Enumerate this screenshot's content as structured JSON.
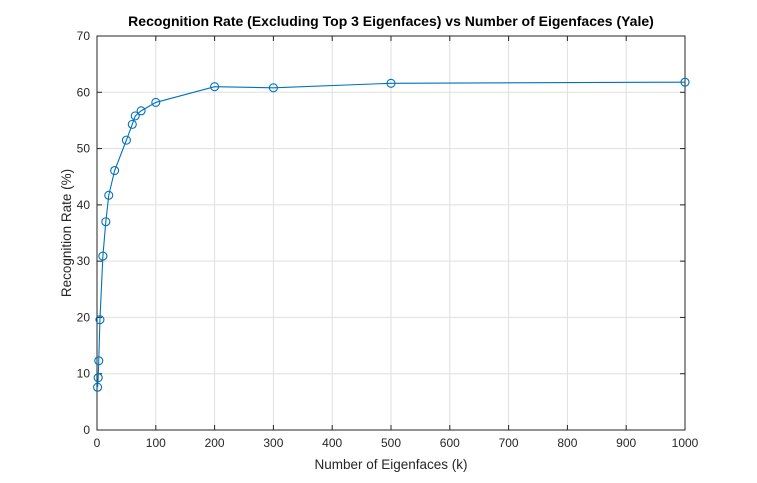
{
  "chart_data": {
    "type": "line",
    "title": "Recognition Rate (Excluding Top 3 Eigenfaces) vs Number of Eigenfaces (Yale)",
    "xlabel": "Number of Eigenfaces (k)",
    "ylabel": "Recognition Rate (%)",
    "xlim": [
      0,
      1000
    ],
    "ylim": [
      0,
      70
    ],
    "xticks": [
      0,
      100,
      200,
      300,
      400,
      500,
      600,
      700,
      800,
      900,
      1000
    ],
    "yticks": [
      0,
      10,
      20,
      30,
      40,
      50,
      60,
      70
    ],
    "grid": true,
    "marker": "circle",
    "color": "#0072BD",
    "series": [
      {
        "x": [
          1,
          2,
          3,
          5,
          10,
          15,
          20,
          30,
          50,
          60,
          65,
          75,
          100,
          200,
          300,
          500,
          1000
        ],
        "y": [
          7.6,
          9.3,
          12.3,
          19.6,
          30.9,
          37.0,
          41.7,
          46.1,
          51.5,
          54.3,
          55.8,
          56.7,
          58.2,
          61.0,
          60.8,
          61.6,
          61.8
        ]
      }
    ]
  }
}
